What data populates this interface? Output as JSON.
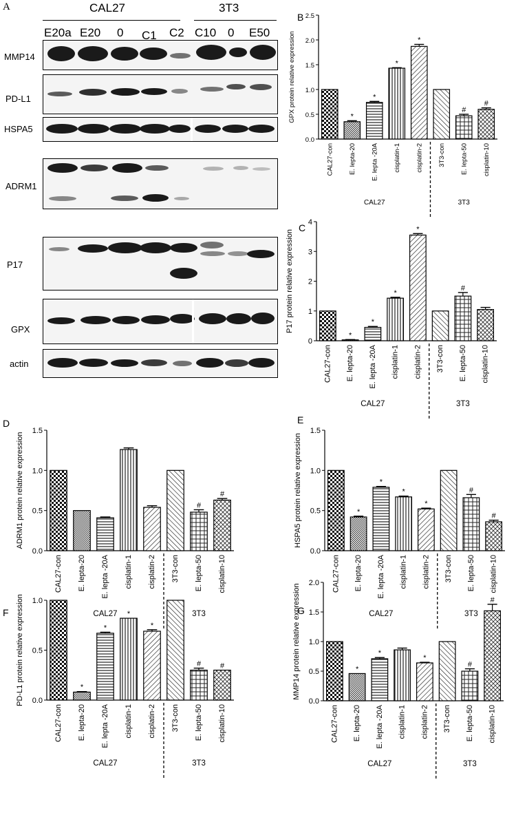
{
  "blot": {
    "letter": "A",
    "cal27_label": "CAL27",
    "t3_label": "3T3",
    "lanes": [
      "E20a",
      "E20",
      "0",
      "C1",
      "C2",
      "C10",
      "0",
      "E50"
    ],
    "proteins": [
      "MMP14",
      "PD-L1",
      "HSPA5",
      "ADRM1",
      "P17",
      "GPX",
      "actin"
    ]
  },
  "group_labels": {
    "cal27": "CAL27",
    "t3": "3T3"
  },
  "chart_data": [
    {
      "panel": "B",
      "type": "bar",
      "ylabel": "GPX protein relative expression",
      "ylim": [
        0,
        2.5
      ],
      "yticks": [
        0,
        0.5,
        1.0,
        1.5,
        2.0,
        2.5
      ],
      "ytick_labels": [
        "0.0",
        "0.5",
        "1.0",
        "1.5",
        "2.0",
        "2.5"
      ],
      "categories": [
        "CAL27-con",
        "E. lepta-20",
        "E. lepta -20A",
        "cisplatin-1",
        "cisplatin-2",
        "3T3-con",
        "E. lepta-50",
        "cisplatin-10"
      ],
      "values": [
        1.0,
        0.35,
        0.74,
        1.43,
        1.87,
        1.0,
        0.47,
        0.6
      ],
      "errors": [
        0,
        0.02,
        0.02,
        0.01,
        0.04,
        0,
        0.03,
        0.03
      ],
      "marks": [
        "",
        "*",
        "*",
        "*",
        "*",
        "",
        "#",
        "#"
      ]
    },
    {
      "panel": "C",
      "type": "bar",
      "ylabel": "P17 protein relative expression",
      "ylim": [
        0,
        4
      ],
      "yticks": [
        0,
        1,
        2,
        3,
        4
      ],
      "ytick_labels": [
        "0",
        "1",
        "2",
        "3",
        "4"
      ],
      "categories": [
        "CAL27-con",
        "E. lepta-20",
        "E. lepta -20A",
        "cisplatin-1",
        "cisplatin-2",
        "3T3-con",
        "E. lepta-50",
        "cisplatin-10"
      ],
      "values": [
        1.0,
        0.03,
        0.45,
        1.43,
        3.55,
        1.0,
        1.5,
        1.05
      ],
      "errors": [
        0,
        0.01,
        0.03,
        0.03,
        0.05,
        0,
        0.12,
        0.07
      ],
      "marks": [
        "",
        "*",
        "*",
        "*",
        "*",
        "",
        "#",
        ""
      ]
    },
    {
      "panel": "D",
      "type": "bar",
      "ylabel": "ADRM1 protein relative expression",
      "ylim": [
        0,
        1.5
      ],
      "yticks": [
        0,
        0.5,
        1.0,
        1.5
      ],
      "ytick_labels": [
        "0.0",
        "0.5",
        "1.0",
        "1.5"
      ],
      "categories": [
        "CAL27-con",
        "E. lepta-20",
        "E. lepta -20A",
        "cisplatin-1",
        "cisplatin-2",
        "3T3-con",
        "E. lepta-50",
        "cisplatin-10"
      ],
      "values": [
        1.0,
        0.5,
        0.41,
        1.26,
        0.54,
        1.0,
        0.48,
        0.63
      ],
      "errors": [
        0,
        0,
        0.01,
        0.02,
        0.02,
        0,
        0.03,
        0.02
      ],
      "marks": [
        "",
        "",
        "",
        "",
        "",
        "",
        "#",
        "#"
      ]
    },
    {
      "panel": "E",
      "type": "bar",
      "ylabel": "HSPA5 protein relative expression",
      "ylim": [
        0,
        1.5
      ],
      "yticks": [
        0,
        0.5,
        1.0,
        1.5
      ],
      "ytick_labels": [
        "0.0",
        "0.5",
        "1.0",
        "1.5"
      ],
      "categories": [
        "CAL27-con",
        "E. lepta-20",
        "E. lepta -20A",
        "cisplatin-1",
        "cisplatin-2",
        "3T3-con",
        "E. lepta-50",
        "cisplatin-10"
      ],
      "values": [
        1.0,
        0.42,
        0.79,
        0.67,
        0.52,
        1.0,
        0.66,
        0.36
      ],
      "errors": [
        0,
        0.01,
        0.01,
        0.01,
        0.01,
        0,
        0.04,
        0.02
      ],
      "marks": [
        "",
        "*",
        "*",
        "*",
        "*",
        "",
        "#",
        "#"
      ]
    },
    {
      "panel": "F",
      "type": "bar",
      "ylabel": "PD-L1 protein relative expression",
      "ylim": [
        0,
        1.0
      ],
      "yticks": [
        0,
        0.5,
        1.0
      ],
      "ytick_labels": [
        "0.0",
        "0.5",
        "1.0"
      ],
      "categories": [
        "CAL27-con",
        "E. lepta-20",
        "E. lepta -20A",
        "cisplatin-1",
        "cisplatin-2",
        "3T3-con",
        "E. lepta-50",
        "cisplatin-10"
      ],
      "values": [
        1.0,
        0.08,
        0.67,
        0.82,
        0.69,
        1.0,
        0.3,
        0.3
      ],
      "errors": [
        0,
        0.005,
        0.01,
        0,
        0.015,
        0,
        0.02,
        0
      ],
      "marks": [
        "",
        "*",
        "*",
        "*",
        "*",
        "",
        "#",
        "#"
      ]
    },
    {
      "panel": "G",
      "type": "bar",
      "ylabel": "MMP14 protein relative expression",
      "ylim": [
        0,
        2.0
      ],
      "yticks": [
        0,
        0.5,
        1.0,
        1.5,
        2.0
      ],
      "ytick_labels": [
        "0.0",
        "0.5",
        "1.0",
        "1.5",
        "2.0"
      ],
      "categories": [
        "CAL27-con",
        "E. lepta-20",
        "E. lepta -20A",
        "cisplatin-1",
        "cisplatin-2",
        "3T3-con",
        "E. lepta-50",
        "cisplatin-10"
      ],
      "values": [
        1.0,
        0.46,
        0.71,
        0.86,
        0.64,
        1.0,
        0.5,
        1.52
      ],
      "errors": [
        0,
        0,
        0.02,
        0.03,
        0.01,
        0,
        0.04,
        0.11
      ],
      "marks": [
        "",
        "*",
        "*",
        "",
        "*",
        "",
        "#",
        "#"
      ]
    }
  ]
}
